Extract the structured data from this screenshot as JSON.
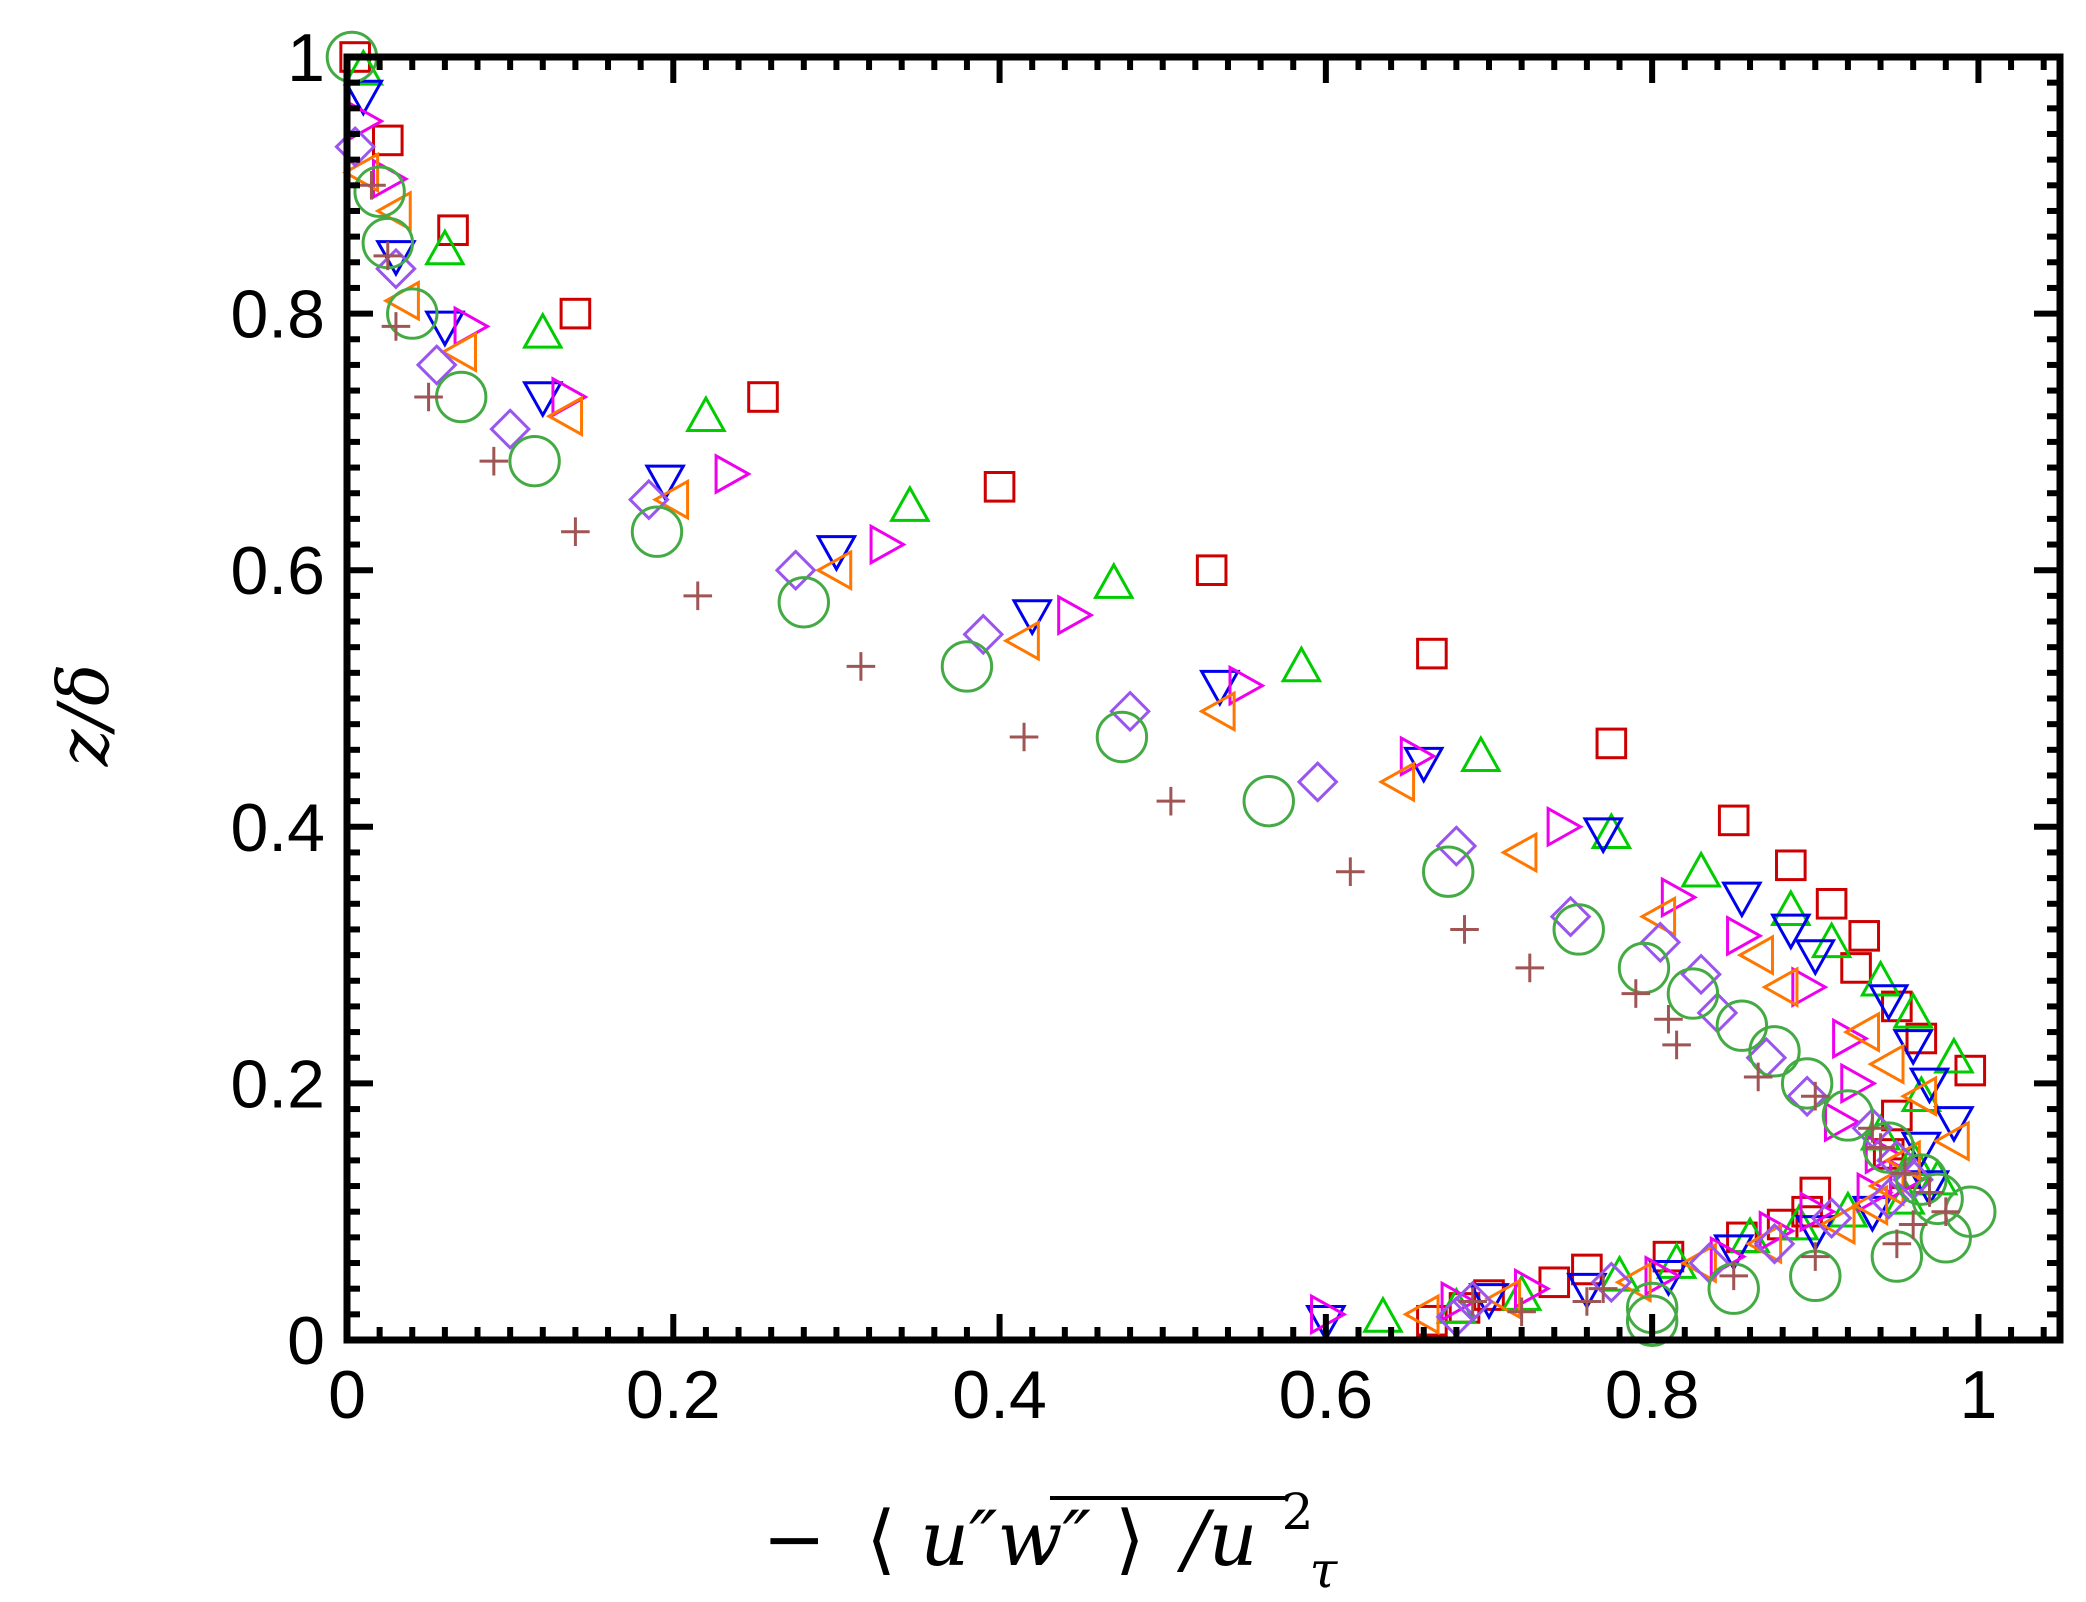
{
  "chart_data": {
    "type": "scatter",
    "title": "",
    "xlabel": "−⟨u″w″⟩/uτ²",
    "xlabel_parts": {
      "minus": "−",
      "langle": "⟨",
      "overlined": "u″w″",
      "rangle": "⟩",
      "slash_u": "/u",
      "sup": "2",
      "sub": "τ"
    },
    "ylabel": "z/δ",
    "xlim": [
      0,
      1.05
    ],
    "ylim": [
      0,
      1
    ],
    "xticks": [
      0,
      0.2,
      0.4,
      0.6,
      0.8,
      1
    ],
    "xtick_labels": [
      "0",
      "0.2",
      "0.4",
      "0.6",
      "0.8",
      "1"
    ],
    "yticks": [
      0,
      0.2,
      0.4,
      0.6,
      0.8,
      1
    ],
    "ytick_labels": [
      "0",
      "0.2",
      "0.4",
      "0.6",
      "0.8",
      "1"
    ],
    "grid": false,
    "legend": "none",
    "series": [
      {
        "name": "series-1",
        "marker": "square",
        "color": "#cc0000",
        "points": [
          [
            0.005,
            1.0
          ],
          [
            0.025,
            0.935
          ],
          [
            0.065,
            0.865
          ],
          [
            0.14,
            0.8
          ],
          [
            0.255,
            0.735
          ],
          [
            0.4,
            0.665
          ],
          [
            0.53,
            0.6
          ],
          [
            0.665,
            0.535
          ],
          [
            0.775,
            0.465
          ],
          [
            0.85,
            0.405
          ],
          [
            0.885,
            0.37
          ],
          [
            0.91,
            0.34
          ],
          [
            0.93,
            0.315
          ],
          [
            0.925,
            0.29
          ],
          [
            0.95,
            0.26
          ],
          [
            0.965,
            0.235
          ],
          [
            0.995,
            0.21
          ],
          [
            0.95,
            0.175
          ],
          [
            0.945,
            0.145
          ],
          [
            0.955,
            0.13
          ],
          [
            0.9,
            0.115
          ],
          [
            0.895,
            0.1
          ],
          [
            0.88,
            0.09
          ],
          [
            0.855,
            0.08
          ],
          [
            0.81,
            0.065
          ],
          [
            0.76,
            0.055
          ],
          [
            0.74,
            0.045
          ],
          [
            0.7,
            0.035
          ],
          [
            0.685,
            0.025
          ],
          [
            0.665,
            0.015
          ]
        ]
      },
      {
        "name": "series-2",
        "marker": "triangle-up",
        "color": "#00cc00",
        "points": [
          [
            0.01,
            0.99
          ],
          [
            0.06,
            0.85
          ],
          [
            0.12,
            0.785
          ],
          [
            0.22,
            0.72
          ],
          [
            0.345,
            0.65
          ],
          [
            0.47,
            0.59
          ],
          [
            0.585,
            0.525
          ],
          [
            0.695,
            0.455
          ],
          [
            0.775,
            0.395
          ],
          [
            0.83,
            0.365
          ],
          [
            0.885,
            0.335
          ],
          [
            0.91,
            0.31
          ],
          [
            0.94,
            0.28
          ],
          [
            0.96,
            0.255
          ],
          [
            0.985,
            0.22
          ],
          [
            0.965,
            0.19
          ],
          [
            0.94,
            0.16
          ],
          [
            0.96,
            0.14
          ],
          [
            0.975,
            0.125
          ],
          [
            0.955,
            0.11
          ],
          [
            0.92,
            0.1
          ],
          [
            0.89,
            0.09
          ],
          [
            0.86,
            0.08
          ],
          [
            0.815,
            0.06
          ],
          [
            0.78,
            0.05
          ],
          [
            0.72,
            0.035
          ],
          [
            0.68,
            0.025
          ],
          [
            0.635,
            0.018
          ]
        ]
      },
      {
        "name": "series-3",
        "marker": "triangle-down",
        "color": "#0000ee",
        "points": [
          [
            0.01,
            0.97
          ],
          [
            0.03,
            0.845
          ],
          [
            0.06,
            0.79
          ],
          [
            0.12,
            0.735
          ],
          [
            0.195,
            0.67
          ],
          [
            0.3,
            0.615
          ],
          [
            0.42,
            0.565
          ],
          [
            0.535,
            0.51
          ],
          [
            0.66,
            0.45
          ],
          [
            0.77,
            0.395
          ],
          [
            0.855,
            0.345
          ],
          [
            0.885,
            0.32
          ],
          [
            0.9,
            0.3
          ],
          [
            0.945,
            0.265
          ],
          [
            0.96,
            0.23
          ],
          [
            0.97,
            0.2
          ],
          [
            0.985,
            0.17
          ],
          [
            0.965,
            0.15
          ],
          [
            0.97,
            0.12
          ],
          [
            0.935,
            0.1
          ],
          [
            0.9,
            0.085
          ],
          [
            0.85,
            0.07
          ],
          [
            0.81,
            0.05
          ],
          [
            0.76,
            0.04
          ],
          [
            0.7,
            0.032
          ],
          [
            0.6,
            0.015
          ]
        ]
      },
      {
        "name": "series-4",
        "marker": "triangle-right",
        "color": "#ee00ee",
        "points": [
          [
            0.01,
            0.95
          ],
          [
            0.025,
            0.905
          ],
          [
            0.075,
            0.79
          ],
          [
            0.135,
            0.735
          ],
          [
            0.235,
            0.675
          ],
          [
            0.33,
            0.62
          ],
          [
            0.445,
            0.565
          ],
          [
            0.55,
            0.51
          ],
          [
            0.655,
            0.455
          ],
          [
            0.745,
            0.4
          ],
          [
            0.815,
            0.345
          ],
          [
            0.855,
            0.315
          ],
          [
            0.895,
            0.275
          ],
          [
            0.92,
            0.235
          ],
          [
            0.925,
            0.2
          ],
          [
            0.915,
            0.17
          ],
          [
            0.94,
            0.145
          ],
          [
            0.955,
            0.125
          ],
          [
            0.935,
            0.115
          ],
          [
            0.9,
            0.1
          ],
          [
            0.875,
            0.085
          ],
          [
            0.845,
            0.065
          ],
          [
            0.805,
            0.05
          ],
          [
            0.725,
            0.04
          ],
          [
            0.68,
            0.03
          ],
          [
            0.6,
            0.02
          ]
        ]
      },
      {
        "name": "series-5",
        "marker": "triangle-left",
        "color": "#ff7700",
        "points": [
          [
            0.01,
            0.91
          ],
          [
            0.03,
            0.88
          ],
          [
            0.035,
            0.81
          ],
          [
            0.07,
            0.77
          ],
          [
            0.135,
            0.72
          ],
          [
            0.2,
            0.655
          ],
          [
            0.3,
            0.6
          ],
          [
            0.415,
            0.545
          ],
          [
            0.535,
            0.49
          ],
          [
            0.645,
            0.435
          ],
          [
            0.72,
            0.38
          ],
          [
            0.805,
            0.33
          ],
          [
            0.865,
            0.3
          ],
          [
            0.88,
            0.275
          ],
          [
            0.93,
            0.24
          ],
          [
            0.945,
            0.215
          ],
          [
            0.965,
            0.19
          ],
          [
            0.985,
            0.155
          ],
          [
            0.955,
            0.14
          ],
          [
            0.945,
            0.12
          ],
          [
            0.935,
            0.105
          ],
          [
            0.915,
            0.09
          ],
          [
            0.87,
            0.075
          ],
          [
            0.83,
            0.06
          ],
          [
            0.79,
            0.045
          ],
          [
            0.71,
            0.032
          ],
          [
            0.66,
            0.02
          ]
        ]
      },
      {
        "name": "series-6",
        "marker": "diamond",
        "color": "#9955ee",
        "points": [
          [
            0.005,
            0.93
          ],
          [
            0.03,
            0.835
          ],
          [
            0.055,
            0.76
          ],
          [
            0.1,
            0.71
          ],
          [
            0.185,
            0.655
          ],
          [
            0.275,
            0.6
          ],
          [
            0.39,
            0.55
          ],
          [
            0.48,
            0.49
          ],
          [
            0.595,
            0.435
          ],
          [
            0.68,
            0.385
          ],
          [
            0.75,
            0.33
          ],
          [
            0.805,
            0.31
          ],
          [
            0.83,
            0.285
          ],
          [
            0.84,
            0.255
          ],
          [
            0.87,
            0.22
          ],
          [
            0.895,
            0.19
          ],
          [
            0.935,
            0.165
          ],
          [
            0.95,
            0.14
          ],
          [
            0.96,
            0.125
          ],
          [
            0.945,
            0.11
          ],
          [
            0.91,
            0.095
          ],
          [
            0.875,
            0.075
          ],
          [
            0.835,
            0.06
          ],
          [
            0.775,
            0.045
          ],
          [
            0.69,
            0.03
          ],
          [
            0.68,
            0.018
          ]
        ]
      },
      {
        "name": "series-7",
        "marker": "circle",
        "color": "#44aa44",
        "points": [
          [
            0.003,
            1.0
          ],
          [
            0.02,
            0.895
          ],
          [
            0.025,
            0.855
          ],
          [
            0.04,
            0.8
          ],
          [
            0.07,
            0.735
          ],
          [
            0.115,
            0.685
          ],
          [
            0.19,
            0.63
          ],
          [
            0.28,
            0.575
          ],
          [
            0.38,
            0.525
          ],
          [
            0.475,
            0.47
          ],
          [
            0.565,
            0.42
          ],
          [
            0.675,
            0.365
          ],
          [
            0.755,
            0.32
          ],
          [
            0.795,
            0.29
          ],
          [
            0.825,
            0.27
          ],
          [
            0.855,
            0.245
          ],
          [
            0.875,
            0.225
          ],
          [
            0.895,
            0.2
          ],
          [
            0.92,
            0.175
          ],
          [
            0.945,
            0.15
          ],
          [
            0.965,
            0.125
          ],
          [
            0.975,
            0.11
          ],
          [
            0.995,
            0.1
          ],
          [
            0.98,
            0.08
          ],
          [
            0.95,
            0.065
          ],
          [
            0.9,
            0.05
          ],
          [
            0.85,
            0.04
          ],
          [
            0.8,
            0.025
          ],
          [
            0.8,
            0.015
          ]
        ]
      },
      {
        "name": "series-8",
        "marker": "plus",
        "color": "#a05555",
        "points": [
          [
            0.015,
            0.9
          ],
          [
            0.025,
            0.845
          ],
          [
            0.03,
            0.79
          ],
          [
            0.05,
            0.735
          ],
          [
            0.09,
            0.685
          ],
          [
            0.14,
            0.63
          ],
          [
            0.215,
            0.58
          ],
          [
            0.315,
            0.525
          ],
          [
            0.415,
            0.47
          ],
          [
            0.505,
            0.42
          ],
          [
            0.615,
            0.365
          ],
          [
            0.685,
            0.32
          ],
          [
            0.725,
            0.29
          ],
          [
            0.79,
            0.27
          ],
          [
            0.81,
            0.25
          ],
          [
            0.815,
            0.23
          ],
          [
            0.865,
            0.205
          ],
          [
            0.9,
            0.19
          ],
          [
            0.935,
            0.165
          ],
          [
            0.94,
            0.15
          ],
          [
            0.955,
            0.13
          ],
          [
            0.97,
            0.115
          ],
          [
            0.98,
            0.1
          ],
          [
            0.96,
            0.09
          ],
          [
            0.95,
            0.075
          ],
          [
            0.9,
            0.065
          ],
          [
            0.85,
            0.05
          ],
          [
            0.77,
            0.04
          ],
          [
            0.76,
            0.03
          ],
          [
            0.72,
            0.022
          ],
          [
            0.69,
            0.03
          ]
        ]
      }
    ]
  }
}
